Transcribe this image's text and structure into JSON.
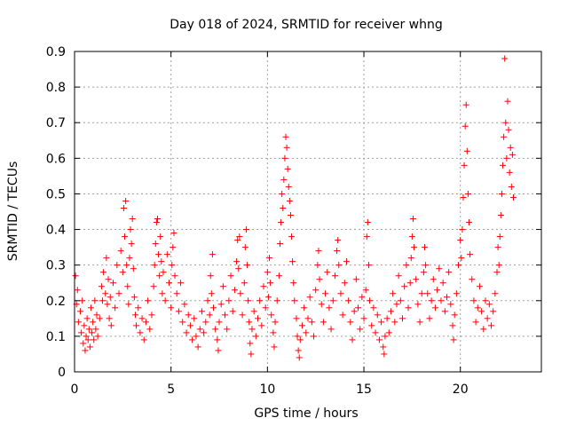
{
  "chart_data": {
    "type": "scatter",
    "title": "Day 018 of 2024, SRMTID for receiver whng",
    "xlabel": "GPS time / hours",
    "ylabel": "SRMTID / TECUs",
    "xlim": [
      0,
      24.2
    ],
    "ylim": [
      0,
      0.9
    ],
    "xticks": [
      0,
      5,
      10,
      15,
      20
    ],
    "xtick_labels": [
      "0",
      "5",
      "10",
      "15",
      "20"
    ],
    "yticks": [
      0,
      0.1,
      0.2,
      0.3,
      0.4,
      0.5,
      0.6,
      0.7,
      0.8,
      0.9
    ],
    "ytick_labels": [
      "0",
      "0.1",
      "0.2",
      "0.3",
      "0.4",
      "0.5",
      "0.6",
      "0.7",
      "0.8",
      "0.9"
    ],
    "grid": true,
    "marker": "+",
    "color": "#ff0000",
    "series": [
      {
        "name": "SRMTID",
        "points": [
          [
            0.05,
            0.27
          ],
          [
            0.1,
            0.19
          ],
          [
            0.15,
            0.23
          ],
          [
            0.2,
            0.14
          ],
          [
            0.3,
            0.17
          ],
          [
            0.35,
            0.11
          ],
          [
            0.4,
            0.2
          ],
          [
            0.45,
            0.08
          ],
          [
            0.5,
            0.13
          ],
          [
            0.55,
            0.06
          ],
          [
            0.6,
            0.1
          ],
          [
            0.65,
            0.15
          ],
          [
            0.7,
            0.09
          ],
          [
            0.75,
            0.12
          ],
          [
            0.8,
            0.07
          ],
          [
            0.85,
            0.18
          ],
          [
            0.9,
            0.11
          ],
          [
            0.95,
            0.14
          ],
          [
            1.0,
            0.09
          ],
          [
            1.05,
            0.2
          ],
          [
            1.1,
            0.12
          ],
          [
            1.15,
            0.16
          ],
          [
            1.2,
            0.1
          ],
          [
            1.3,
            0.15
          ],
          [
            1.4,
            0.24
          ],
          [
            1.45,
            0.2
          ],
          [
            1.5,
            0.28
          ],
          [
            1.6,
            0.22
          ],
          [
            1.65,
            0.32
          ],
          [
            1.7,
            0.19
          ],
          [
            1.75,
            0.26
          ],
          [
            1.8,
            0.15
          ],
          [
            1.85,
            0.21
          ],
          [
            1.9,
            0.13
          ],
          [
            2.0,
            0.25
          ],
          [
            2.1,
            0.18
          ],
          [
            2.2,
            0.3
          ],
          [
            2.3,
            0.22
          ],
          [
            2.4,
            0.34
          ],
          [
            2.5,
            0.28
          ],
          [
            2.55,
            0.46
          ],
          [
            2.6,
            0.38
          ],
          [
            2.65,
            0.48
          ],
          [
            2.7,
            0.3
          ],
          [
            2.75,
            0.24
          ],
          [
            2.8,
            0.19
          ],
          [
            2.85,
            0.32
          ],
          [
            2.9,
            0.4
          ],
          [
            2.95,
            0.36
          ],
          [
            3.0,
            0.43
          ],
          [
            3.05,
            0.29
          ],
          [
            3.1,
            0.21
          ],
          [
            3.15,
            0.16
          ],
          [
            3.2,
            0.13
          ],
          [
            3.3,
            0.18
          ],
          [
            3.4,
            0.11
          ],
          [
            3.5,
            0.15
          ],
          [
            3.6,
            0.09
          ],
          [
            3.7,
            0.14
          ],
          [
            3.8,
            0.2
          ],
          [
            3.9,
            0.12
          ],
          [
            4.0,
            0.16
          ],
          [
            4.1,
            0.24
          ],
          [
            4.15,
            0.3
          ],
          [
            4.2,
            0.36
          ],
          [
            4.25,
            0.42
          ],
          [
            4.3,
            0.43
          ],
          [
            4.35,
            0.33
          ],
          [
            4.4,
            0.27
          ],
          [
            4.45,
            0.38
          ],
          [
            4.5,
            0.31
          ],
          [
            4.55,
            0.22
          ],
          [
            4.6,
            0.28
          ],
          [
            4.7,
            0.2
          ],
          [
            4.8,
            0.33
          ],
          [
            4.9,
            0.25
          ],
          [
            5.0,
            0.18
          ],
          [
            5.05,
            0.3
          ],
          [
            5.1,
            0.35
          ],
          [
            5.15,
            0.39
          ],
          [
            5.2,
            0.27
          ],
          [
            5.3,
            0.22
          ],
          [
            5.4,
            0.17
          ],
          [
            5.5,
            0.25
          ],
          [
            5.6,
            0.14
          ],
          [
            5.7,
            0.19
          ],
          [
            5.8,
            0.11
          ],
          [
            5.9,
            0.16
          ],
          [
            6.0,
            0.13
          ],
          [
            6.1,
            0.09
          ],
          [
            6.2,
            0.15
          ],
          [
            6.3,
            0.1
          ],
          [
            6.4,
            0.07
          ],
          [
            6.5,
            0.12
          ],
          [
            6.6,
            0.17
          ],
          [
            6.7,
            0.11
          ],
          [
            6.8,
            0.14
          ],
          [
            6.9,
            0.2
          ],
          [
            7.0,
            0.16
          ],
          [
            7.05,
            0.27
          ],
          [
            7.1,
            0.22
          ],
          [
            7.15,
            0.33
          ],
          [
            7.2,
            0.18
          ],
          [
            7.3,
            0.12
          ],
          [
            7.4,
            0.09
          ],
          [
            7.45,
            0.06
          ],
          [
            7.5,
            0.14
          ],
          [
            7.6,
            0.19
          ],
          [
            7.7,
            0.24
          ],
          [
            7.8,
            0.16
          ],
          [
            7.9,
            0.12
          ],
          [
            8.0,
            0.2
          ],
          [
            8.1,
            0.27
          ],
          [
            8.2,
            0.17
          ],
          [
            8.3,
            0.23
          ],
          [
            8.4,
            0.31
          ],
          [
            8.45,
            0.37
          ],
          [
            8.5,
            0.29
          ],
          [
            8.55,
            0.38
          ],
          [
            8.6,
            0.22
          ],
          [
            8.7,
            0.16
          ],
          [
            8.8,
            0.25
          ],
          [
            8.85,
            0.35
          ],
          [
            8.9,
            0.4
          ],
          [
            8.95,
            0.3
          ],
          [
            9.0,
            0.2
          ],
          [
            9.05,
            0.14
          ],
          [
            9.1,
            0.08
          ],
          [
            9.15,
            0.05
          ],
          [
            9.2,
            0.12
          ],
          [
            9.3,
            0.17
          ],
          [
            9.4,
            0.1
          ],
          [
            9.5,
            0.15
          ],
          [
            9.6,
            0.2
          ],
          [
            9.7,
            0.13
          ],
          [
            9.8,
            0.24
          ],
          [
            9.9,
            0.18
          ],
          [
            10.0,
            0.28
          ],
          [
            10.05,
            0.21
          ],
          [
            10.1,
            0.32
          ],
          [
            10.15,
            0.25
          ],
          [
            10.2,
            0.16
          ],
          [
            10.3,
            0.11
          ],
          [
            10.35,
            0.07
          ],
          [
            10.4,
            0.14
          ],
          [
            10.5,
            0.2
          ],
          [
            10.6,
            0.27
          ],
          [
            10.65,
            0.36
          ],
          [
            10.7,
            0.42
          ],
          [
            10.75,
            0.5
          ],
          [
            10.8,
            0.46
          ],
          [
            10.85,
            0.54
          ],
          [
            10.9,
            0.6
          ],
          [
            10.95,
            0.66
          ],
          [
            11.0,
            0.63
          ],
          [
            11.05,
            0.57
          ],
          [
            11.1,
            0.52
          ],
          [
            11.15,
            0.48
          ],
          [
            11.2,
            0.44
          ],
          [
            11.25,
            0.38
          ],
          [
            11.3,
            0.31
          ],
          [
            11.35,
            0.25
          ],
          [
            11.4,
            0.2
          ],
          [
            11.5,
            0.15
          ],
          [
            11.55,
            0.1
          ],
          [
            11.6,
            0.06
          ],
          [
            11.65,
            0.04
          ],
          [
            11.7,
            0.09
          ],
          [
            11.8,
            0.13
          ],
          [
            11.9,
            0.18
          ],
          [
            12.0,
            0.11
          ],
          [
            12.1,
            0.15
          ],
          [
            12.2,
            0.21
          ],
          [
            12.3,
            0.14
          ],
          [
            12.4,
            0.1
          ],
          [
            12.5,
            0.23
          ],
          [
            12.6,
            0.3
          ],
          [
            12.65,
            0.34
          ],
          [
            12.7,
            0.26
          ],
          [
            12.8,
            0.19
          ],
          [
            12.9,
            0.14
          ],
          [
            13.0,
            0.22
          ],
          [
            13.1,
            0.28
          ],
          [
            13.2,
            0.18
          ],
          [
            13.3,
            0.12
          ],
          [
            13.4,
            0.2
          ],
          [
            13.5,
            0.27
          ],
          [
            13.6,
            0.34
          ],
          [
            13.65,
            0.37
          ],
          [
            13.7,
            0.3
          ],
          [
            13.8,
            0.22
          ],
          [
            13.9,
            0.16
          ],
          [
            14.0,
            0.25
          ],
          [
            14.1,
            0.31
          ],
          [
            14.2,
            0.2
          ],
          [
            14.3,
            0.14
          ],
          [
            14.4,
            0.09
          ],
          [
            14.5,
            0.17
          ],
          [
            14.6,
            0.26
          ],
          [
            14.7,
            0.18
          ],
          [
            14.8,
            0.12
          ],
          [
            14.9,
            0.21
          ],
          [
            15.0,
            0.15
          ],
          [
            15.1,
            0.23
          ],
          [
            15.15,
            0.38
          ],
          [
            15.2,
            0.42
          ],
          [
            15.25,
            0.3
          ],
          [
            15.3,
            0.2
          ],
          [
            15.4,
            0.13
          ],
          [
            15.5,
            0.18
          ],
          [
            15.6,
            0.11
          ],
          [
            15.7,
            0.16
          ],
          [
            15.8,
            0.09
          ],
          [
            15.9,
            0.14
          ],
          [
            16.0,
            0.07
          ],
          [
            16.05,
            0.05
          ],
          [
            16.1,
            0.1
          ],
          [
            16.2,
            0.15
          ],
          [
            16.3,
            0.11
          ],
          [
            16.4,
            0.17
          ],
          [
            16.5,
            0.22
          ],
          [
            16.6,
            0.14
          ],
          [
            16.7,
            0.19
          ],
          [
            16.8,
            0.27
          ],
          [
            16.9,
            0.2
          ],
          [
            17.0,
            0.15
          ],
          [
            17.1,
            0.24
          ],
          [
            17.2,
            0.3
          ],
          [
            17.3,
            0.18
          ],
          [
            17.4,
            0.25
          ],
          [
            17.45,
            0.32
          ],
          [
            17.5,
            0.38
          ],
          [
            17.55,
            0.43
          ],
          [
            17.6,
            0.35
          ],
          [
            17.7,
            0.26
          ],
          [
            17.8,
            0.19
          ],
          [
            17.9,
            0.14
          ],
          [
            18.0,
            0.22
          ],
          [
            18.1,
            0.28
          ],
          [
            18.15,
            0.35
          ],
          [
            18.2,
            0.3
          ],
          [
            18.3,
            0.22
          ],
          [
            18.4,
            0.15
          ],
          [
            18.5,
            0.2
          ],
          [
            18.6,
            0.26
          ],
          [
            18.7,
            0.18
          ],
          [
            18.8,
            0.23
          ],
          [
            18.9,
            0.29
          ],
          [
            19.0,
            0.2
          ],
          [
            19.1,
            0.25
          ],
          [
            19.2,
            0.17
          ],
          [
            19.3,
            0.21
          ],
          [
            19.4,
            0.28
          ],
          [
            19.5,
            0.19
          ],
          [
            19.6,
            0.13
          ],
          [
            19.65,
            0.09
          ],
          [
            19.7,
            0.16
          ],
          [
            19.8,
            0.22
          ],
          [
            19.9,
            0.3
          ],
          [
            20.0,
            0.37
          ],
          [
            20.05,
            0.32
          ],
          [
            20.1,
            0.4
          ],
          [
            20.15,
            0.49
          ],
          [
            20.2,
            0.58
          ],
          [
            20.25,
            0.69
          ],
          [
            20.3,
            0.75
          ],
          [
            20.35,
            0.62
          ],
          [
            20.4,
            0.5
          ],
          [
            20.45,
            0.42
          ],
          [
            20.5,
            0.33
          ],
          [
            20.6,
            0.26
          ],
          [
            20.7,
            0.2
          ],
          [
            20.8,
            0.14
          ],
          [
            20.9,
            0.18
          ],
          [
            21.0,
            0.24
          ],
          [
            21.1,
            0.17
          ],
          [
            21.2,
            0.12
          ],
          [
            21.3,
            0.2
          ],
          [
            21.4,
            0.15
          ],
          [
            21.5,
            0.19
          ],
          [
            21.6,
            0.13
          ],
          [
            21.7,
            0.17
          ],
          [
            21.8,
            0.22
          ],
          [
            21.9,
            0.28
          ],
          [
            21.95,
            0.35
          ],
          [
            22.0,
            0.3
          ],
          [
            22.05,
            0.38
          ],
          [
            22.1,
            0.44
          ],
          [
            22.15,
            0.5
          ],
          [
            22.2,
            0.58
          ],
          [
            22.25,
            0.66
          ],
          [
            22.3,
            0.88
          ],
          [
            22.35,
            0.7
          ],
          [
            22.4,
            0.6
          ],
          [
            22.45,
            0.76
          ],
          [
            22.5,
            0.68
          ],
          [
            22.55,
            0.56
          ],
          [
            22.6,
            0.63
          ],
          [
            22.65,
            0.52
          ],
          [
            22.7,
            0.61
          ],
          [
            22.75,
            0.49
          ]
        ]
      }
    ]
  }
}
